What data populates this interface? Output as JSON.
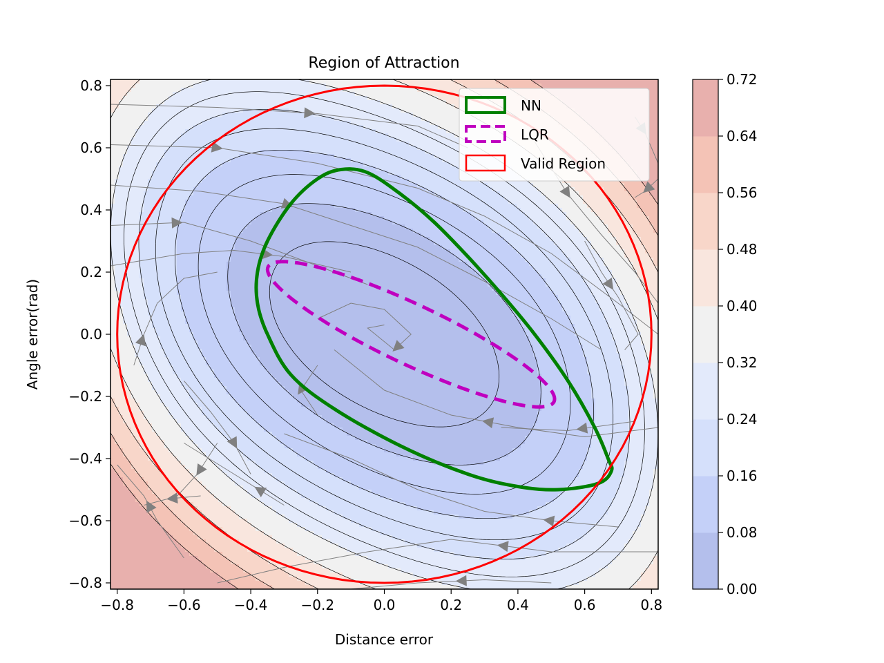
{
  "chart_data": {
    "type": "contour",
    "title": "Region of Attraction",
    "xlabel": "Distance error",
    "ylabel": "Angle error(rad)",
    "xlim": [
      -0.82,
      0.82
    ],
    "ylim": [
      -0.82,
      0.82
    ],
    "xticks": [
      -0.8,
      -0.6,
      -0.4,
      -0.2,
      0.0,
      0.2,
      0.4,
      0.6,
      0.8
    ],
    "yticks": [
      -0.8,
      -0.6,
      -0.4,
      -0.2,
      0.0,
      0.2,
      0.4,
      0.6,
      0.8
    ],
    "xtick_labels": [
      "−0.8",
      "−0.6",
      "−0.4",
      "−0.2",
      "0.0",
      "0.2",
      "0.4",
      "0.6",
      "0.8"
    ],
    "ytick_labels": [
      "−0.8",
      "−0.6",
      "−0.4",
      "−0.2",
      "0.0",
      "0.2",
      "0.4",
      "0.6",
      "0.8"
    ],
    "colorbar": {
      "levels": [
        0.0,
        0.08,
        0.16,
        0.24,
        0.32,
        0.4,
        0.48,
        0.56,
        0.64,
        0.72
      ],
      "tick_labels": [
        "0.00",
        "0.08",
        "0.16",
        "0.24",
        "0.32",
        "0.40",
        "0.48",
        "0.56",
        "0.64",
        "0.72"
      ],
      "colors": [
        "#b4bfec",
        "#c4d0f8",
        "#d5e0fb",
        "#e3eafb",
        "#f1f1f1",
        "#f9e6de",
        "#f8d6c9",
        "#f4c3b6",
        "#e8b0ad"
      ]
    },
    "contour_model": {
      "function": "V = a*x^2 + b*x*y + c*y^2 + d*x^4",
      "a": 0.4,
      "b": 0.46,
      "c": 0.58,
      "d": 0.25,
      "line_levels": [
        0.04,
        0.08,
        0.12,
        0.16,
        0.2,
        0.24,
        0.28,
        0.32,
        0.4,
        0.48,
        0.56,
        0.64
      ]
    },
    "series": [
      {
        "name": "NN",
        "style": "solid",
        "color": "#008000",
        "points": [
          [
            -0.13,
            0.53
          ],
          [
            -0.05,
            0.52
          ],
          [
            0.05,
            0.45
          ],
          [
            0.15,
            0.36
          ],
          [
            0.25,
            0.25
          ],
          [
            0.35,
            0.13
          ],
          [
            0.45,
            0.0
          ],
          [
            0.55,
            -0.15
          ],
          [
            0.63,
            -0.3
          ],
          [
            0.67,
            -0.4
          ],
          [
            0.68,
            -0.44
          ],
          [
            0.64,
            -0.48
          ],
          [
            0.52,
            -0.5
          ],
          [
            0.4,
            -0.49
          ],
          [
            0.25,
            -0.45
          ],
          [
            0.05,
            -0.36
          ],
          [
            -0.15,
            -0.24
          ],
          [
            -0.28,
            -0.13
          ],
          [
            -0.35,
            0.0
          ],
          [
            -0.38,
            0.1
          ],
          [
            -0.38,
            0.2
          ],
          [
            -0.35,
            0.3
          ],
          [
            -0.28,
            0.42
          ],
          [
            -0.2,
            0.5
          ],
          [
            -0.13,
            0.53
          ]
        ]
      },
      {
        "name": "LQR",
        "style": "dashed",
        "color": "#bf00bf",
        "ellipse": {
          "cx": 0.08,
          "cy": 0.0,
          "rx": 0.48,
          "ry": 0.095,
          "angle_deg": -27
        }
      },
      {
        "name": "Valid Region",
        "style": "solid",
        "color": "#ff0000",
        "ellipse": {
          "cx": 0.0,
          "cy": 0.0,
          "rx": 0.8,
          "ry": 0.8,
          "angle_deg": 0
        }
      }
    ],
    "streamlines": [
      {
        "points": [
          [
            -0.82,
            0.74
          ],
          [
            -0.5,
            0.73
          ],
          [
            -0.2,
            0.71
          ],
          [
            0.1,
            0.67
          ],
          [
            0.25,
            0.6
          ]
        ],
        "arrow_at": 0.55
      },
      {
        "points": [
          [
            -0.82,
            0.61
          ],
          [
            -0.5,
            0.6
          ],
          [
            -0.2,
            0.55
          ],
          [
            0.1,
            0.47
          ],
          [
            0.3,
            0.38
          ],
          [
            0.5,
            0.26
          ],
          [
            0.7,
            0.1
          ],
          [
            0.82,
            0.0
          ]
        ],
        "arrow_at": 0.18
      },
      {
        "points": [
          [
            -0.82,
            0.48
          ],
          [
            -0.55,
            0.46
          ],
          [
            -0.3,
            0.42
          ],
          [
            -0.1,
            0.35
          ],
          [
            0.1,
            0.28
          ],
          [
            0.3,
            0.17
          ],
          [
            0.5,
            0.05
          ],
          [
            0.65,
            -0.05
          ]
        ],
        "arrow_at": 0.34
      },
      {
        "points": [
          [
            -0.82,
            0.35
          ],
          [
            -0.6,
            0.36
          ],
          [
            -0.4,
            0.3
          ],
          [
            -0.2,
            0.22
          ],
          [
            -0.05,
            0.16
          ]
        ],
        "arrow_at": 0.25
      },
      {
        "points": [
          [
            -0.82,
            0.22
          ],
          [
            -0.6,
            0.26
          ],
          [
            -0.45,
            0.27
          ],
          [
            -0.3,
            0.25
          ],
          [
            -0.1,
            0.2
          ]
        ],
        "arrow_at": 0.65
      },
      {
        "points": [
          [
            -0.2,
            0.05
          ],
          [
            -0.1,
            0.1
          ],
          [
            0.0,
            0.08
          ],
          [
            0.08,
            0.0
          ],
          [
            0.03,
            -0.05
          ],
          [
            -0.05,
            0.02
          ],
          [
            0.0,
            0.03
          ]
        ],
        "arrow_at": 0.7
      },
      {
        "points": [
          [
            0.75,
            0.7
          ],
          [
            0.78,
            0.65
          ],
          [
            0.82,
            0.55
          ]
        ],
        "arrow_at": 0.3
      },
      {
        "points": [
          [
            0.45,
            0.62
          ],
          [
            0.55,
            0.45
          ],
          [
            0.65,
            0.32
          ],
          [
            0.75,
            0.2
          ],
          [
            0.82,
            0.1
          ]
        ],
        "arrow_at": 0.3
      },
      {
        "points": [
          [
            0.6,
            0.3
          ],
          [
            0.65,
            0.2
          ],
          [
            0.7,
            0.12
          ],
          [
            0.76,
            0.0
          ],
          [
            0.72,
            -0.05
          ]
        ],
        "arrow_at": 0.4
      },
      {
        "points": [
          [
            0.82,
            0.5
          ],
          [
            0.78,
            0.46
          ],
          [
            0.75,
            0.44
          ]
        ],
        "arrow_at": 0.5
      },
      {
        "points": [
          [
            0.75,
            -0.28
          ],
          [
            0.55,
            -0.31
          ],
          [
            0.35,
            -0.3
          ]
        ],
        "arrow_at": 0.4
      },
      {
        "points": [
          [
            0.82,
            -0.3
          ],
          [
            0.6,
            -0.33
          ],
          [
            0.4,
            -0.3
          ],
          [
            0.2,
            -0.26
          ],
          [
            0.0,
            -0.18
          ],
          [
            -0.15,
            -0.05
          ]
        ],
        "arrow_at": 0.5
      },
      {
        "points": [
          [
            -0.2,
            -0.1
          ],
          [
            -0.25,
            -0.18
          ],
          [
            -0.2,
            -0.26
          ]
        ],
        "arrow_at": 0.5
      },
      {
        "points": [
          [
            0.7,
            -0.62
          ],
          [
            0.5,
            -0.6
          ],
          [
            0.3,
            -0.57
          ],
          [
            0.1,
            -0.5
          ],
          [
            -0.1,
            -0.4
          ],
          [
            -0.3,
            -0.32
          ]
        ],
        "arrow_at": 0.2
      },
      {
        "points": [
          [
            0.82,
            -0.7
          ],
          [
            0.5,
            -0.7
          ],
          [
            0.2,
            -0.66
          ],
          [
            -0.05,
            -0.7
          ],
          [
            -0.3,
            -0.75
          ],
          [
            -0.5,
            -0.8
          ]
        ],
        "arrow_at": 0.35
      },
      {
        "points": [
          [
            0.5,
            -0.8
          ],
          [
            0.3,
            -0.79
          ],
          [
            0.1,
            -0.8
          ],
          [
            -0.1,
            -0.82
          ]
        ],
        "arrow_at": 0.45
      },
      {
        "points": [
          [
            -0.75,
            -0.1
          ],
          [
            -0.72,
            0.0
          ],
          [
            -0.68,
            0.1
          ],
          [
            -0.6,
            0.18
          ],
          [
            -0.5,
            0.2
          ]
        ],
        "arrow_at": 0.2
      },
      {
        "points": [
          [
            -0.6,
            -0.72
          ],
          [
            -0.68,
            -0.6
          ],
          [
            -0.72,
            -0.52
          ],
          [
            -0.8,
            -0.42
          ]
        ],
        "arrow_at": 0.55
      },
      {
        "points": [
          [
            -0.6,
            -0.15
          ],
          [
            -0.52,
            -0.25
          ],
          [
            -0.45,
            -0.35
          ],
          [
            -0.4,
            -0.45
          ]
        ],
        "arrow_at": 0.7
      },
      {
        "points": [
          [
            -0.5,
            -0.35
          ],
          [
            -0.56,
            -0.45
          ],
          [
            -0.62,
            -0.52
          ]
        ],
        "arrow_at": 0.5
      },
      {
        "points": [
          [
            -0.55,
            -0.52
          ],
          [
            -0.65,
            -0.53
          ],
          [
            -0.72,
            -0.55
          ]
        ],
        "arrow_at": 0.5
      },
      {
        "points": [
          [
            -0.3,
            -0.55
          ],
          [
            -0.45,
            -0.45
          ],
          [
            -0.6,
            -0.35
          ]
        ],
        "arrow_at": 0.25
      }
    ],
    "legend": {
      "placement": "top-right",
      "entries": [
        "NN",
        "LQR",
        "Valid Region"
      ]
    },
    "grid": false
  }
}
